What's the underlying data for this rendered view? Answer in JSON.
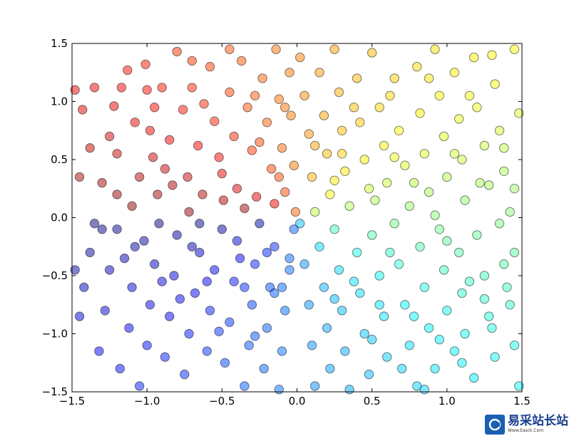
{
  "chart_data": {
    "type": "scatter",
    "title": "",
    "xlabel": "",
    "ylabel": "",
    "xlim": [
      -1.5,
      1.5
    ],
    "ylim": [
      -1.5,
      1.5
    ],
    "xticks": [
      "−1.5",
      "−1.0",
      "−0.5",
      "0.0",
      "0.5",
      "1.0",
      "1.5"
    ],
    "yticks": [
      "1.5",
      "1.0",
      "0.5",
      "0.0",
      "−0.5",
      "−1.0",
      "−1.5"
    ],
    "xtick_values": [
      -1.5,
      -1.0,
      -0.5,
      0.0,
      0.5,
      1.0,
      1.5
    ],
    "ytick_values": [
      1.5,
      1.0,
      0.5,
      0.0,
      -0.5,
      -1.0,
      -1.5
    ],
    "grid": false,
    "marker_alpha": 0.5,
    "colormap": "jet",
    "color_by": "angle arctan2(y, x)",
    "marker_edge": "#000000",
    "points": [
      [
        -1.48,
        1.1
      ],
      [
        -1.43,
        0.93
      ],
      [
        -1.35,
        1.12
      ],
      [
        -1.38,
        0.6
      ],
      [
        -1.3,
        0.3
      ],
      [
        -1.22,
        0.96
      ],
      [
        -1.2,
        0.55
      ],
      [
        -1.17,
        1.12
      ],
      [
        -1.13,
        1.27
      ],
      [
        -1.08,
        0.82
      ],
      [
        -1.05,
        0.35
      ],
      [
        -1.01,
        1.32
      ],
      [
        -0.98,
        0.75
      ],
      [
        -0.96,
        0.52
      ],
      [
        -0.93,
        0.2
      ],
      [
        -0.9,
        1.12
      ],
      [
        -0.85,
        0.67
      ],
      [
        -0.83,
        0.28
      ],
      [
        -0.8,
        1.43
      ],
      [
        -0.76,
        0.93
      ],
      [
        -0.73,
        0.35
      ],
      [
        -0.7,
        1.12
      ],
      [
        -0.66,
        0.62
      ],
      [
        -0.63,
        0.2
      ],
      [
        -0.58,
        1.3
      ],
      [
        -0.55,
        0.83
      ],
      [
        -0.52,
        0.52
      ],
      [
        -0.49,
        0.15
      ],
      [
        -0.45,
        1.08
      ],
      [
        -0.42,
        0.7
      ],
      [
        -0.4,
        0.25
      ],
      [
        -0.37,
        1.35
      ],
      [
        -0.33,
        0.95
      ],
      [
        -0.3,
        0.58
      ],
      [
        -0.27,
        0.18
      ],
      [
        -0.23,
        1.2
      ],
      [
        -0.2,
        0.82
      ],
      [
        -0.17,
        0.42
      ],
      [
        -0.14,
        1.45
      ],
      [
        -0.12,
        1.02
      ],
      [
        -0.1,
        0.6
      ],
      [
        -0.08,
        0.22
      ],
      [
        -0.05,
        1.25
      ],
      [
        -0.04,
        0.88
      ],
      [
        -0.02,
        0.45
      ],
      [
        -0.01,
        0.05
      ],
      [
        -1.45,
        0.35
      ],
      [
        -1.25,
        0.7
      ],
      [
        -1.1,
        0.1
      ],
      [
        -0.95,
        0.95
      ],
      [
        -0.88,
        0.42
      ],
      [
        -0.72,
        0.05
      ],
      [
        -0.62,
        0.98
      ],
      [
        -0.5,
        0.38
      ],
      [
        -0.35,
        0.08
      ],
      [
        -0.25,
        0.65
      ],
      [
        -0.15,
        0.12
      ],
      [
        -0.08,
        0.95
      ],
      [
        -1.2,
        0.2
      ],
      [
        -1.0,
        1.1
      ],
      [
        -0.7,
        1.35
      ],
      [
        -0.45,
        1.45
      ],
      [
        -0.28,
        1.05
      ],
      [
        -0.12,
        0.35
      ],
      [
        0.02,
        1.38
      ],
      [
        0.05,
        1.05
      ],
      [
        0.08,
        0.72
      ],
      [
        0.1,
        0.35
      ],
      [
        0.12,
        0.05
      ],
      [
        0.15,
        1.25
      ],
      [
        0.18,
        0.88
      ],
      [
        0.2,
        0.55
      ],
      [
        0.22,
        0.2
      ],
      [
        0.25,
        1.45
      ],
      [
        0.28,
        1.08
      ],
      [
        0.3,
        0.75
      ],
      [
        0.32,
        0.4
      ],
      [
        0.35,
        0.1
      ],
      [
        0.4,
        1.2
      ],
      [
        0.42,
        0.82
      ],
      [
        0.45,
        0.5
      ],
      [
        0.48,
        0.25
      ],
      [
        0.5,
        1.42
      ],
      [
        0.55,
        0.95
      ],
      [
        0.58,
        0.62
      ],
      [
        0.6,
        0.3
      ],
      [
        0.65,
        1.2
      ],
      [
        0.68,
        0.75
      ],
      [
        0.72,
        0.45
      ],
      [
        0.75,
        0.1
      ],
      [
        0.8,
        1.3
      ],
      [
        0.82,
        0.9
      ],
      [
        0.85,
        0.55
      ],
      [
        0.88,
        0.22
      ],
      [
        0.92,
        1.45
      ],
      [
        0.95,
        1.05
      ],
      [
        0.98,
        0.7
      ],
      [
        1.0,
        0.35
      ],
      [
        1.05,
        1.25
      ],
      [
        1.08,
        0.85
      ],
      [
        1.1,
        0.5
      ],
      [
        1.12,
        0.15
      ],
      [
        1.18,
        1.38
      ],
      [
        1.2,
        0.95
      ],
      [
        1.25,
        0.62
      ],
      [
        1.28,
        0.28
      ],
      [
        1.32,
        1.15
      ],
      [
        1.35,
        0.75
      ],
      [
        1.38,
        0.4
      ],
      [
        1.42,
        0.05
      ],
      [
        1.45,
        1.45
      ],
      [
        1.48,
        0.9
      ],
      [
        0.12,
        0.62
      ],
      [
        0.25,
        0.32
      ],
      [
        0.38,
        0.95
      ],
      [
        0.52,
        0.15
      ],
      [
        0.65,
        0.52
      ],
      [
        0.78,
        0.3
      ],
      [
        0.92,
        0.02
      ],
      [
        1.05,
        0.55
      ],
      [
        1.22,
        0.3
      ],
      [
        1.38,
        0.6
      ],
      [
        0.3,
        0.55
      ],
      [
        0.62,
        1.05
      ],
      [
        0.88,
        1.2
      ],
      [
        1.15,
        1.05
      ],
      [
        1.3,
        1.4
      ],
      [
        1.45,
        0.25
      ],
      [
        0.02,
        -0.05
      ],
      [
        0.05,
        -0.4
      ],
      [
        0.08,
        -0.75
      ],
      [
        0.1,
        -1.1
      ],
      [
        0.12,
        -1.45
      ],
      [
        0.15,
        -0.25
      ],
      [
        0.18,
        -0.6
      ],
      [
        0.2,
        -0.95
      ],
      [
        0.22,
        -1.3
      ],
      [
        0.25,
        -0.1
      ],
      [
        0.28,
        -0.45
      ],
      [
        0.3,
        -0.8
      ],
      [
        0.32,
        -1.15
      ],
      [
        0.35,
        -1.48
      ],
      [
        0.4,
        -0.3
      ],
      [
        0.42,
        -0.65
      ],
      [
        0.45,
        -1.0
      ],
      [
        0.48,
        -1.35
      ],
      [
        0.5,
        -0.15
      ],
      [
        0.55,
        -0.5
      ],
      [
        0.58,
        -0.85
      ],
      [
        0.6,
        -1.2
      ],
      [
        0.65,
        -0.05
      ],
      [
        0.68,
        -0.4
      ],
      [
        0.72,
        -0.75
      ],
      [
        0.75,
        -1.1
      ],
      [
        0.8,
        -1.45
      ],
      [
        0.82,
        -0.25
      ],
      [
        0.85,
        -0.6
      ],
      [
        0.88,
        -0.95
      ],
      [
        0.92,
        -1.3
      ],
      [
        0.95,
        -0.1
      ],
      [
        0.98,
        -0.45
      ],
      [
        1.0,
        -0.8
      ],
      [
        1.05,
        -1.15
      ],
      [
        1.08,
        -0.3
      ],
      [
        1.1,
        -0.65
      ],
      [
        1.12,
        -1.0
      ],
      [
        1.18,
        -1.38
      ],
      [
        1.2,
        -0.15
      ],
      [
        1.25,
        -0.5
      ],
      [
        1.28,
        -0.85
      ],
      [
        1.32,
        -1.2
      ],
      [
        1.35,
        -0.05
      ],
      [
        1.38,
        -0.4
      ],
      [
        1.42,
        -0.75
      ],
      [
        1.45,
        -1.1
      ],
      [
        1.48,
        -1.45
      ],
      [
        0.55,
        -0.75
      ],
      [
        0.7,
        -1.3
      ],
      [
        0.85,
        -1.48
      ],
      [
        1.0,
        -0.2
      ],
      [
        1.15,
        -0.55
      ],
      [
        1.3,
        -0.95
      ],
      [
        1.45,
        -0.3
      ],
      [
        0.38,
        -0.55
      ],
      [
        0.62,
        -0.3
      ],
      [
        0.78,
        -0.85
      ],
      [
        0.95,
        -1.05
      ],
      [
        1.1,
        -1.25
      ],
      [
        1.25,
        -0.7
      ],
      [
        1.4,
        -0.6
      ],
      [
        0.5,
        -1.05
      ],
      [
        0.25,
        -0.7
      ],
      [
        -0.02,
        -0.1
      ],
      [
        -0.05,
        -0.45
      ],
      [
        -0.08,
        -0.8
      ],
      [
        -0.1,
        -1.15
      ],
      [
        -0.12,
        -1.48
      ],
      [
        -0.15,
        -0.25
      ],
      [
        -0.18,
        -0.6
      ],
      [
        -0.2,
        -0.95
      ],
      [
        -0.22,
        -1.3
      ],
      [
        -0.25,
        -0.05
      ],
      [
        -0.28,
        -0.4
      ],
      [
        -0.3,
        -0.75
      ],
      [
        -0.32,
        -1.1
      ],
      [
        -0.35,
        -1.45
      ],
      [
        -0.4,
        -0.2
      ],
      [
        -0.42,
        -0.55
      ],
      [
        -0.45,
        -0.9
      ],
      [
        -0.48,
        -1.25
      ],
      [
        -0.5,
        -0.1
      ],
      [
        -0.55,
        -0.45
      ],
      [
        -0.58,
        -0.8
      ],
      [
        -0.6,
        -1.15
      ],
      [
        -0.65,
        -0.3
      ],
      [
        -0.68,
        -0.65
      ],
      [
        -0.72,
        -1.0
      ],
      [
        -0.75,
        -1.35
      ],
      [
        -0.8,
        -0.15
      ],
      [
        -0.82,
        -0.5
      ],
      [
        -0.85,
        -0.85
      ],
      [
        -0.88,
        -1.2
      ],
      [
        -0.92,
        -0.05
      ],
      [
        -0.95,
        -0.4
      ],
      [
        -0.98,
        -0.75
      ],
      [
        -1.0,
        -1.1
      ],
      [
        -1.05,
        -1.45
      ],
      [
        -1.08,
        -0.25
      ],
      [
        -1.1,
        -0.6
      ],
      [
        -1.12,
        -0.95
      ],
      [
        -1.18,
        -1.3
      ],
      [
        -1.2,
        -0.1
      ],
      [
        -1.25,
        -0.45
      ],
      [
        -1.28,
        -0.8
      ],
      [
        -1.32,
        -1.15
      ],
      [
        -1.35,
        -0.05
      ],
      [
        -1.38,
        -0.3
      ],
      [
        -1.42,
        -0.6
      ],
      [
        -1.45,
        -0.85
      ],
      [
        -1.48,
        -0.45
      ],
      [
        -0.6,
        -0.55
      ],
      [
        -0.38,
        -0.35
      ],
      [
        -0.15,
        -0.65
      ],
      [
        -0.05,
        -0.35
      ],
      [
        -0.7,
        -0.25
      ],
      [
        -0.9,
        -0.55
      ],
      [
        -1.15,
        -0.35
      ],
      [
        -0.52,
        -0.98
      ],
      [
        -0.28,
        -1.02
      ],
      [
        -0.1,
        -0.6
      ],
      [
        -0.35,
        -0.6
      ],
      [
        -0.78,
        -0.7
      ],
      [
        -1.02,
        -0.2
      ],
      [
        -1.3,
        -0.1
      ],
      [
        -0.65,
        -0.05
      ],
      [
        -0.2,
        -0.3
      ]
    ]
  },
  "watermark": {
    "text": "易采站长站",
    "subtext": "Www.Easck.Com"
  }
}
